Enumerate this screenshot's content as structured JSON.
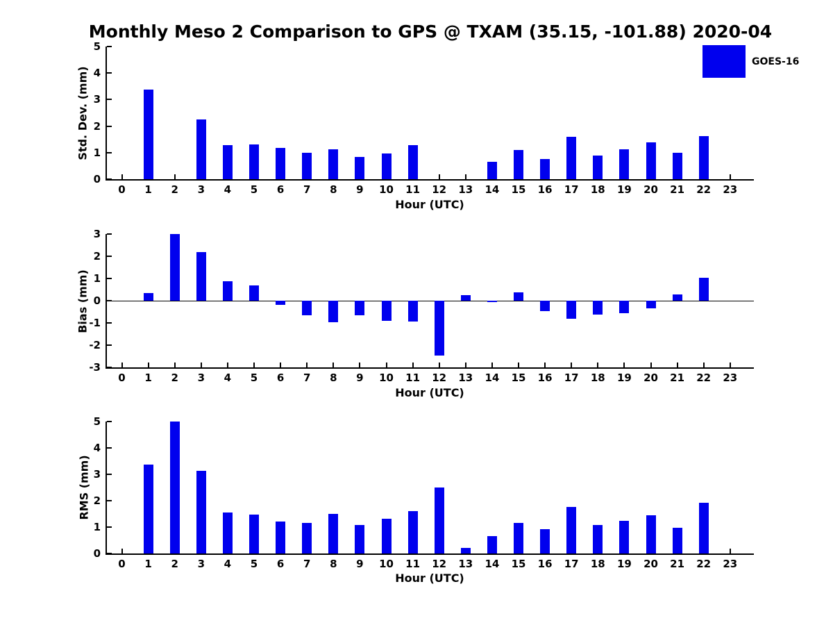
{
  "title": "Monthly Meso 2 Comparison to GPS @ TXAM (35.15, -101.88) 2020-04",
  "legend": {
    "label": "GOES-16",
    "color": "#0000ee",
    "position": "top-right"
  },
  "colors": {
    "bar": "#0000ee",
    "axis": "#000000",
    "text": "#000000",
    "background": "#ffffff"
  },
  "chart_data": [
    {
      "type": "bar",
      "panel": "std-dev",
      "ylabel": "Std. Dev. (mm)",
      "xlabel": "Hour (UTC)",
      "categories": [
        0,
        1,
        2,
        3,
        4,
        5,
        6,
        7,
        8,
        9,
        10,
        11,
        12,
        13,
        14,
        15,
        16,
        17,
        18,
        19,
        20,
        21,
        22,
        23
      ],
      "series": [
        {
          "name": "GOES-16",
          "values": [
            null,
            3.38,
            null,
            2.24,
            1.27,
            1.3,
            1.19,
            1.0,
            1.12,
            0.84,
            0.96,
            1.27,
            null,
            null,
            0.65,
            1.1,
            0.76,
            1.6,
            0.88,
            1.12,
            1.38,
            0.99,
            1.63,
            null
          ]
        }
      ],
      "ylim": [
        0,
        5
      ],
      "yticks": [
        0,
        1,
        2,
        3,
        4,
        5
      ],
      "grid": false
    },
    {
      "type": "bar",
      "panel": "bias",
      "ylabel": "Bias (mm)",
      "xlabel": "Hour (UTC)",
      "categories": [
        0,
        1,
        2,
        3,
        4,
        5,
        6,
        7,
        8,
        9,
        10,
        11,
        12,
        13,
        14,
        15,
        16,
        17,
        18,
        19,
        20,
        21,
        22,
        23
      ],
      "series": [
        {
          "name": "GOES-16",
          "values": [
            null,
            0.33,
            3.0,
            2.2,
            0.88,
            0.7,
            -0.18,
            -0.65,
            -0.97,
            -0.67,
            -0.92,
            -0.95,
            -2.48,
            0.25,
            -0.06,
            0.37,
            -0.48,
            -0.8,
            -0.62,
            -0.55,
            -0.33,
            0.27,
            1.04,
            null
          ]
        }
      ],
      "ylim": [
        -3,
        3
      ],
      "yticks": [
        -3,
        -2,
        -1,
        0,
        1,
        2,
        3
      ],
      "zero_line": true,
      "grid": false
    },
    {
      "type": "bar",
      "panel": "rms",
      "ylabel": "RMS (mm)",
      "xlabel": "Hour (UTC)",
      "categories": [
        0,
        1,
        2,
        3,
        4,
        5,
        6,
        7,
        8,
        9,
        10,
        11,
        12,
        13,
        14,
        15,
        16,
        17,
        18,
        19,
        20,
        21,
        22,
        23
      ],
      "series": [
        {
          "name": "GOES-16",
          "values": [
            null,
            3.37,
            5.0,
            3.12,
            1.55,
            1.47,
            1.21,
            1.16,
            1.5,
            1.08,
            1.32,
            1.61,
            2.51,
            0.21,
            0.65,
            1.15,
            0.91,
            1.77,
            1.08,
            1.25,
            1.44,
            0.98,
            1.91,
            null
          ]
        }
      ],
      "ylim": [
        0,
        5
      ],
      "yticks": [
        0,
        1,
        2,
        3,
        4,
        5
      ],
      "grid": false
    }
  ]
}
